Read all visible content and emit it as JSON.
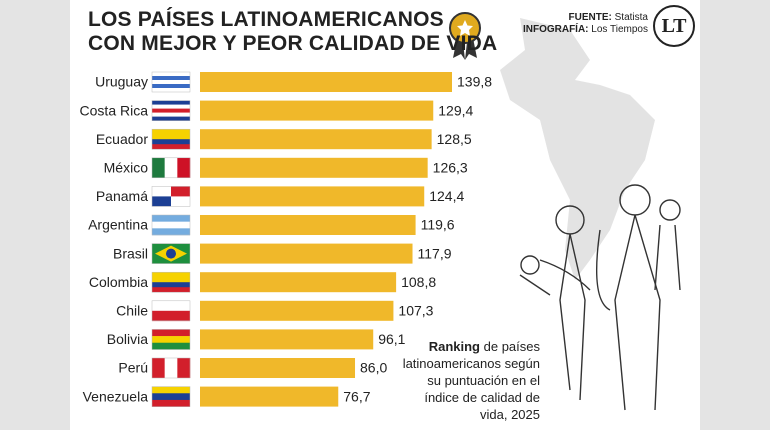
{
  "chart_data": {
    "type": "bar",
    "title": [
      "LOS PAÍSES LATINOAMERICANOS",
      "CON MEJOR Y PEOR CALIDAD DE VIDA"
    ],
    "source_label": "FUENTE:",
    "source": "Statista",
    "credit_label": "INFOGRAFÍA:",
    "credit": "Los Tiempos",
    "logo": "LT",
    "caption_bold": "Ranking",
    "caption": "de países latinoamericanos según su puntuación en el índice de calidad de vida, 2025",
    "categories": [
      "Uruguay",
      "Costa Rica",
      "Ecuador",
      "México",
      "Panamá",
      "Argentina",
      "Brasil",
      "Colombia",
      "Chile",
      "Bolivia",
      "Perú",
      "Venezuela"
    ],
    "values": [
      139.8,
      129.4,
      128.5,
      126.3,
      124.4,
      119.6,
      117.9,
      108.8,
      107.3,
      96.1,
      86.0,
      76.7
    ],
    "value_labels": [
      "139,8",
      "129,4",
      "128,5",
      "126,3",
      "124,4",
      "119,6",
      "117,9",
      "108,8",
      "107,3",
      "96,1",
      "86,0",
      "76,7"
    ],
    "color": "#f0b82a"
  }
}
